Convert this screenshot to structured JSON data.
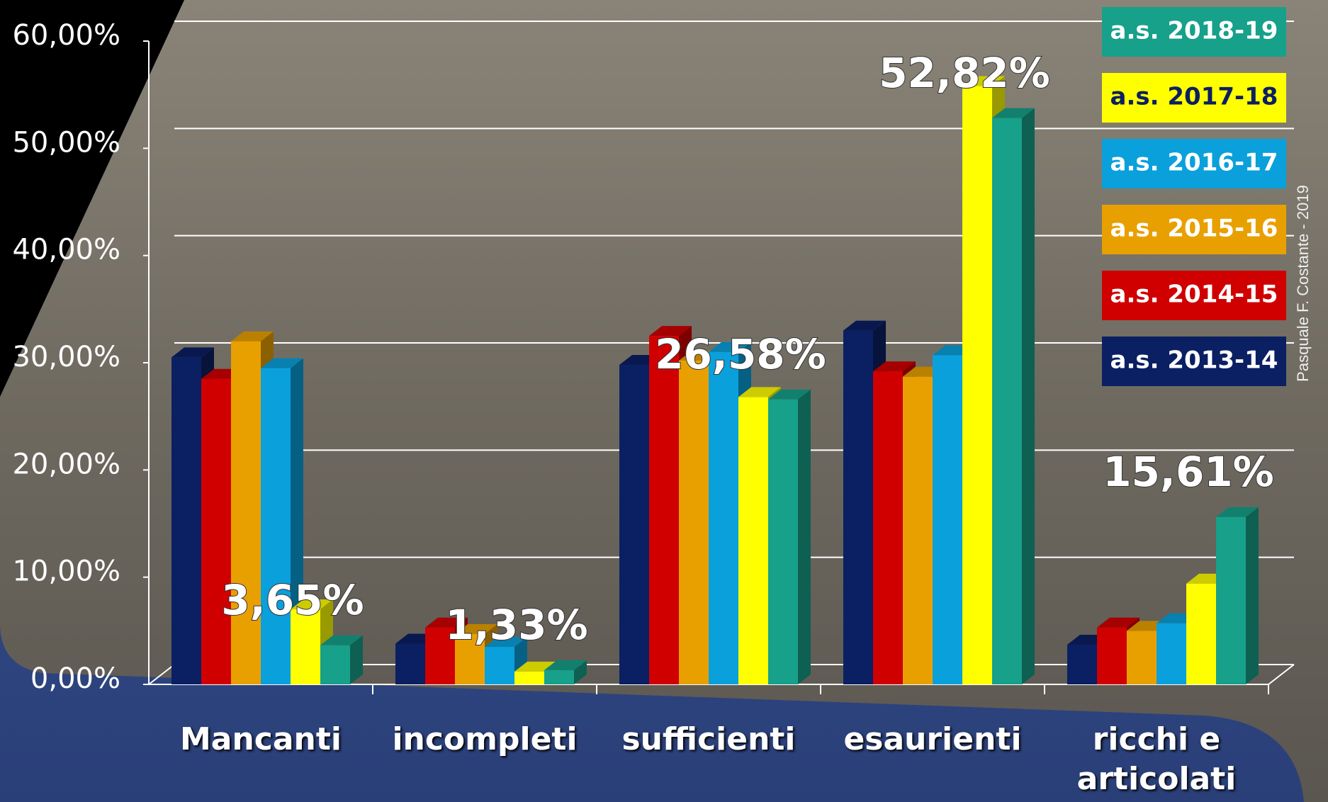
{
  "chart_data": {
    "type": "bar3d",
    "categories": [
      "Mancanti",
      "incompleti",
      "sufficienti",
      "esaurienti",
      "ricchi e articolati"
    ],
    "series": [
      {
        "name": "a.s. 2013-14",
        "color": "#0b1f63",
        "values": [
          30.5,
          3.8,
          29.8,
          33.0,
          3.7
        ]
      },
      {
        "name": "a.s. 2014-15",
        "color": "#d00000",
        "values": [
          28.5,
          5.3,
          32.5,
          29.2,
          5.3
        ]
      },
      {
        "name": "a.s. 2015-16",
        "color": "#e8a000",
        "values": [
          32.0,
          4.7,
          30.2,
          28.7,
          5.0
        ]
      },
      {
        "name": "a.s. 2016-17",
        "color": "#0aa0dc",
        "values": [
          29.5,
          3.5,
          31.0,
          30.7,
          5.7
        ]
      },
      {
        "name": "a.s. 2017-18",
        "color": "#ffff00",
        "values": [
          7.0,
          1.2,
          26.8,
          55.8,
          9.4
        ]
      },
      {
        "name": "a.s. 2018-19",
        "color": "#17a08a",
        "values": [
          3.65,
          1.33,
          26.58,
          52.82,
          15.61
        ],
        "value_labels": [
          "3,65%",
          "1,33%",
          "26,58%",
          "52,82%",
          "15,61%"
        ]
      }
    ],
    "ylim": [
      0,
      60
    ],
    "yticks": [
      {
        "value": 0,
        "label": "0,00%"
      },
      {
        "value": 10,
        "label": "10,00%"
      },
      {
        "value": 20,
        "label": "20,00%"
      },
      {
        "value": 30,
        "label": "30,00%"
      },
      {
        "value": 40,
        "label": "40,00%"
      },
      {
        "value": 50,
        "label": "50,00%"
      },
      {
        "value": 60,
        "label": "60,00%"
      }
    ],
    "grid": true,
    "watermark": "Pasquale  F. Costante - 2019"
  }
}
